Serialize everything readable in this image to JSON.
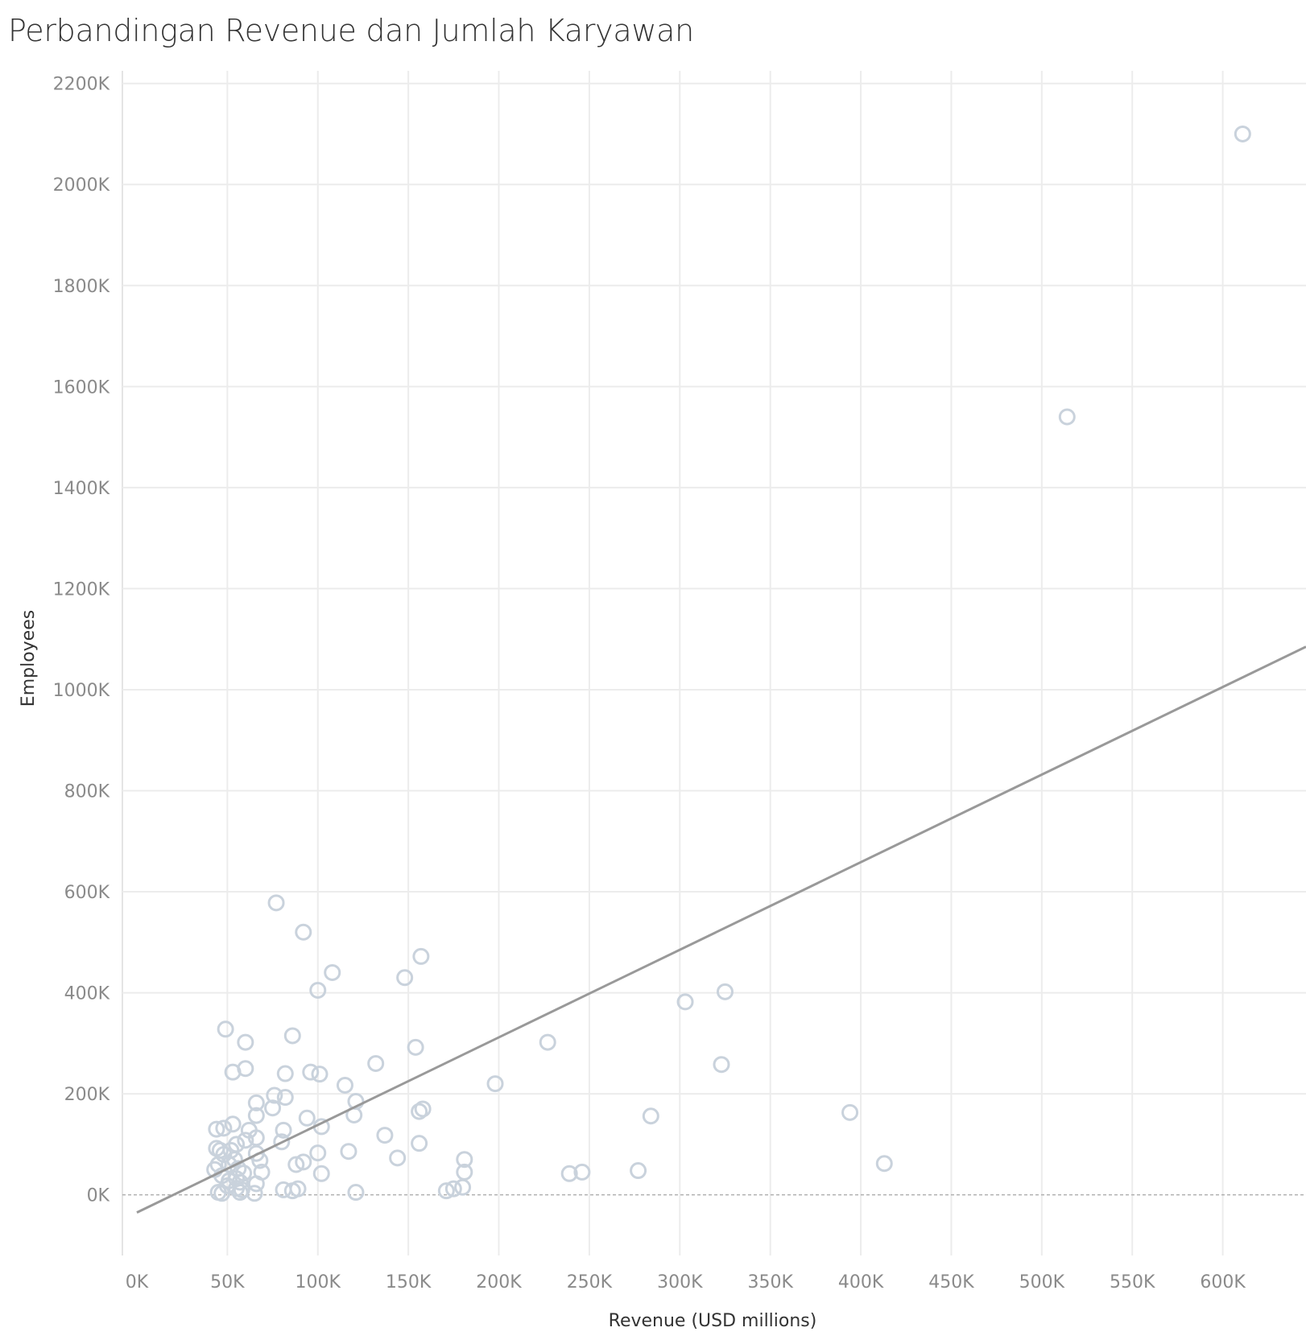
{
  "chart_data": {
    "type": "scatter",
    "title": "Perbandingan Revenue dan Jumlah Karyawan",
    "xlabel": "Revenue (USD millions)",
    "ylabel": "Employees",
    "xlim": [
      -8000,
      646000
    ],
    "ylim": [
      -120000,
      2225000
    ],
    "x_ticks": [
      0,
      50000,
      100000,
      150000,
      200000,
      250000,
      300000,
      350000,
      400000,
      450000,
      500000,
      550000,
      600000
    ],
    "x_tick_labels": [
      "0K",
      "50K",
      "100K",
      "150K",
      "200K",
      "250K",
      "300K",
      "350K",
      "400K",
      "450K",
      "500K",
      "550K",
      "600K"
    ],
    "y_ticks": [
      0,
      200000,
      400000,
      600000,
      800000,
      1000000,
      1200000,
      1400000,
      1600000,
      1800000,
      2000000,
      2200000
    ],
    "y_tick_labels": [
      "0K",
      "200K",
      "400K",
      "600K",
      "800K",
      "1000K",
      "1200K",
      "1400K",
      "1600K",
      "1800K",
      "2000K",
      "2200K"
    ],
    "grid": true,
    "zero_line": true,
    "marker": "hollow-circle",
    "marker_color": "#c9d2dc",
    "trend_line": {
      "color": "#999999",
      "x": [
        0,
        646000
      ],
      "y": [
        -35000,
        1085000
      ]
    },
    "points": [
      [
        611000,
        2100000
      ],
      [
        514000,
        1540000
      ],
      [
        413000,
        62000
      ],
      [
        394000,
        163000
      ],
      [
        325000,
        402000
      ],
      [
        323000,
        258000
      ],
      [
        303000,
        382000
      ],
      [
        284000,
        156000
      ],
      [
        277000,
        48000
      ],
      [
        246000,
        45000
      ],
      [
        239000,
        42000
      ],
      [
        227000,
        302000
      ],
      [
        198000,
        220000
      ],
      [
        181000,
        70000
      ],
      [
        181000,
        45000
      ],
      [
        180000,
        15000
      ],
      [
        175000,
        12000
      ],
      [
        171000,
        8000
      ],
      [
        158000,
        170000
      ],
      [
        157000,
        472000
      ],
      [
        156000,
        165000
      ],
      [
        156000,
        102000
      ],
      [
        154000,
        292000
      ],
      [
        148000,
        430000
      ],
      [
        144000,
        73000
      ],
      [
        137000,
        118000
      ],
      [
        132000,
        260000
      ],
      [
        121000,
        185000
      ],
      [
        120000,
        158000
      ],
      [
        121000,
        5000
      ],
      [
        117000,
        86000
      ],
      [
        115000,
        217000
      ],
      [
        108000,
        440000
      ],
      [
        102000,
        135000
      ],
      [
        102000,
        42000
      ],
      [
        101000,
        239000
      ],
      [
        100000,
        405000
      ],
      [
        100000,
        83000
      ],
      [
        96000,
        243000
      ],
      [
        94000,
        152000
      ],
      [
        92000,
        520000
      ],
      [
        92000,
        65000
      ],
      [
        89000,
        12000
      ],
      [
        88000,
        60000
      ],
      [
        86000,
        315000
      ],
      [
        86000,
        8000
      ],
      [
        82000,
        240000
      ],
      [
        82000,
        193000
      ],
      [
        81000,
        128000
      ],
      [
        81000,
        10000
      ],
      [
        80000,
        105000
      ],
      [
        77000,
        578000
      ],
      [
        76000,
        197000
      ],
      [
        75000,
        172000
      ],
      [
        69000,
        45000
      ],
      [
        68000,
        68000
      ],
      [
        66000,
        182000
      ],
      [
        66000,
        157000
      ],
      [
        66000,
        113000
      ],
      [
        66000,
        82000
      ],
      [
        66000,
        22000
      ],
      [
        65000,
        3000
      ],
      [
        62000,
        128000
      ],
      [
        60000,
        250000
      ],
      [
        60000,
        302000
      ],
      [
        60000,
        108000
      ],
      [
        59000,
        43000
      ],
      [
        58000,
        10000
      ],
      [
        57000,
        25000
      ],
      [
        57000,
        5000
      ],
      [
        56000,
        52000
      ],
      [
        55000,
        100000
      ],
      [
        55000,
        32000
      ],
      [
        55000,
        13000
      ],
      [
        54000,
        70000
      ],
      [
        53000,
        243000
      ],
      [
        53000,
        140000
      ],
      [
        52000,
        88000
      ],
      [
        51000,
        60000
      ],
      [
        50000,
        18000
      ],
      [
        49000,
        328000
      ],
      [
        48000,
        132000
      ],
      [
        48000,
        80000
      ],
      [
        47000,
        38000
      ],
      [
        47000,
        3000
      ],
      [
        46000,
        88000
      ],
      [
        45000,
        60000
      ],
      [
        44000,
        130000
      ],
      [
        44000,
        92000
      ],
      [
        43000,
        50000
      ],
      [
        45000,
        5000
      ],
      [
        51000,
        28000
      ]
    ]
  }
}
